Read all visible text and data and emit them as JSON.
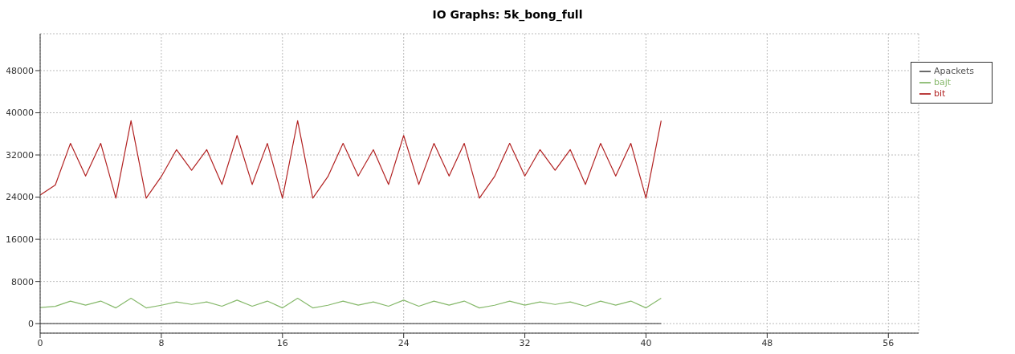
{
  "chart_data": {
    "type": "line",
    "title": "IO Graphs: 5k_bong_full",
    "x": [
      0,
      1,
      2,
      3,
      4,
      5,
      6,
      7,
      8,
      9,
      10,
      11,
      12,
      13,
      14,
      15,
      16,
      17,
      18,
      19,
      20,
      21,
      22,
      23,
      24,
      25,
      26,
      27,
      28,
      29,
      30,
      31,
      32,
      33,
      34,
      35,
      36,
      37,
      38,
      39,
      40,
      41
    ],
    "series": [
      {
        "name": "bajt",
        "color": "#86b96b",
        "values": [
          3050,
          3290,
          4280,
          3500,
          4280,
          2980,
          4810,
          2980,
          3490,
          4130,
          3640,
          4130,
          3300,
          4460,
          3300,
          4280,
          2980,
          4810,
          2980,
          3490,
          4280,
          3500,
          4130,
          3300,
          4460,
          3300,
          4280,
          3500,
          4280,
          2980,
          3490,
          4280,
          3500,
          4130,
          3640,
          4130,
          3300,
          4280,
          3500,
          4280,
          2980,
          4810
        ]
      },
      {
        "name": "bit",
        "color": "#b22222",
        "values": [
          24400,
          26300,
          34200,
          28000,
          34200,
          23800,
          38500,
          23800,
          27900,
          33000,
          29100,
          33000,
          26400,
          35700,
          26400,
          34200,
          23800,
          38500,
          23800,
          27900,
          34200,
          28000,
          33000,
          26400,
          35700,
          26400,
          34200,
          28000,
          34200,
          23800,
          27900,
          34200,
          28000,
          33000,
          29100,
          33000,
          26400,
          34200,
          28000,
          34200,
          23800,
          38500
        ]
      },
      {
        "name": "Apackets",
        "color": "#555555",
        "values": [
          0,
          0,
          0,
          0,
          0,
          0,
          0,
          0,
          0,
          0,
          0,
          0,
          0,
          0,
          0,
          0,
          0,
          0,
          0,
          0,
          0,
          0,
          0,
          0,
          0,
          0,
          0,
          0,
          0,
          0,
          0,
          0,
          0,
          0,
          0,
          0,
          0,
          0,
          0,
          0,
          0,
          0
        ]
      }
    ],
    "xlim": [
      0,
      58
    ],
    "xticks": [
      0,
      8,
      16,
      24,
      32,
      40,
      48,
      56
    ],
    "ylim": [
      -1800,
      55000
    ],
    "yticks": [
      0,
      8000,
      16000,
      24000,
      32000,
      40000,
      48000
    ],
    "grid": true,
    "legend": "top right",
    "marker": "none",
    "line_style": "solid"
  }
}
